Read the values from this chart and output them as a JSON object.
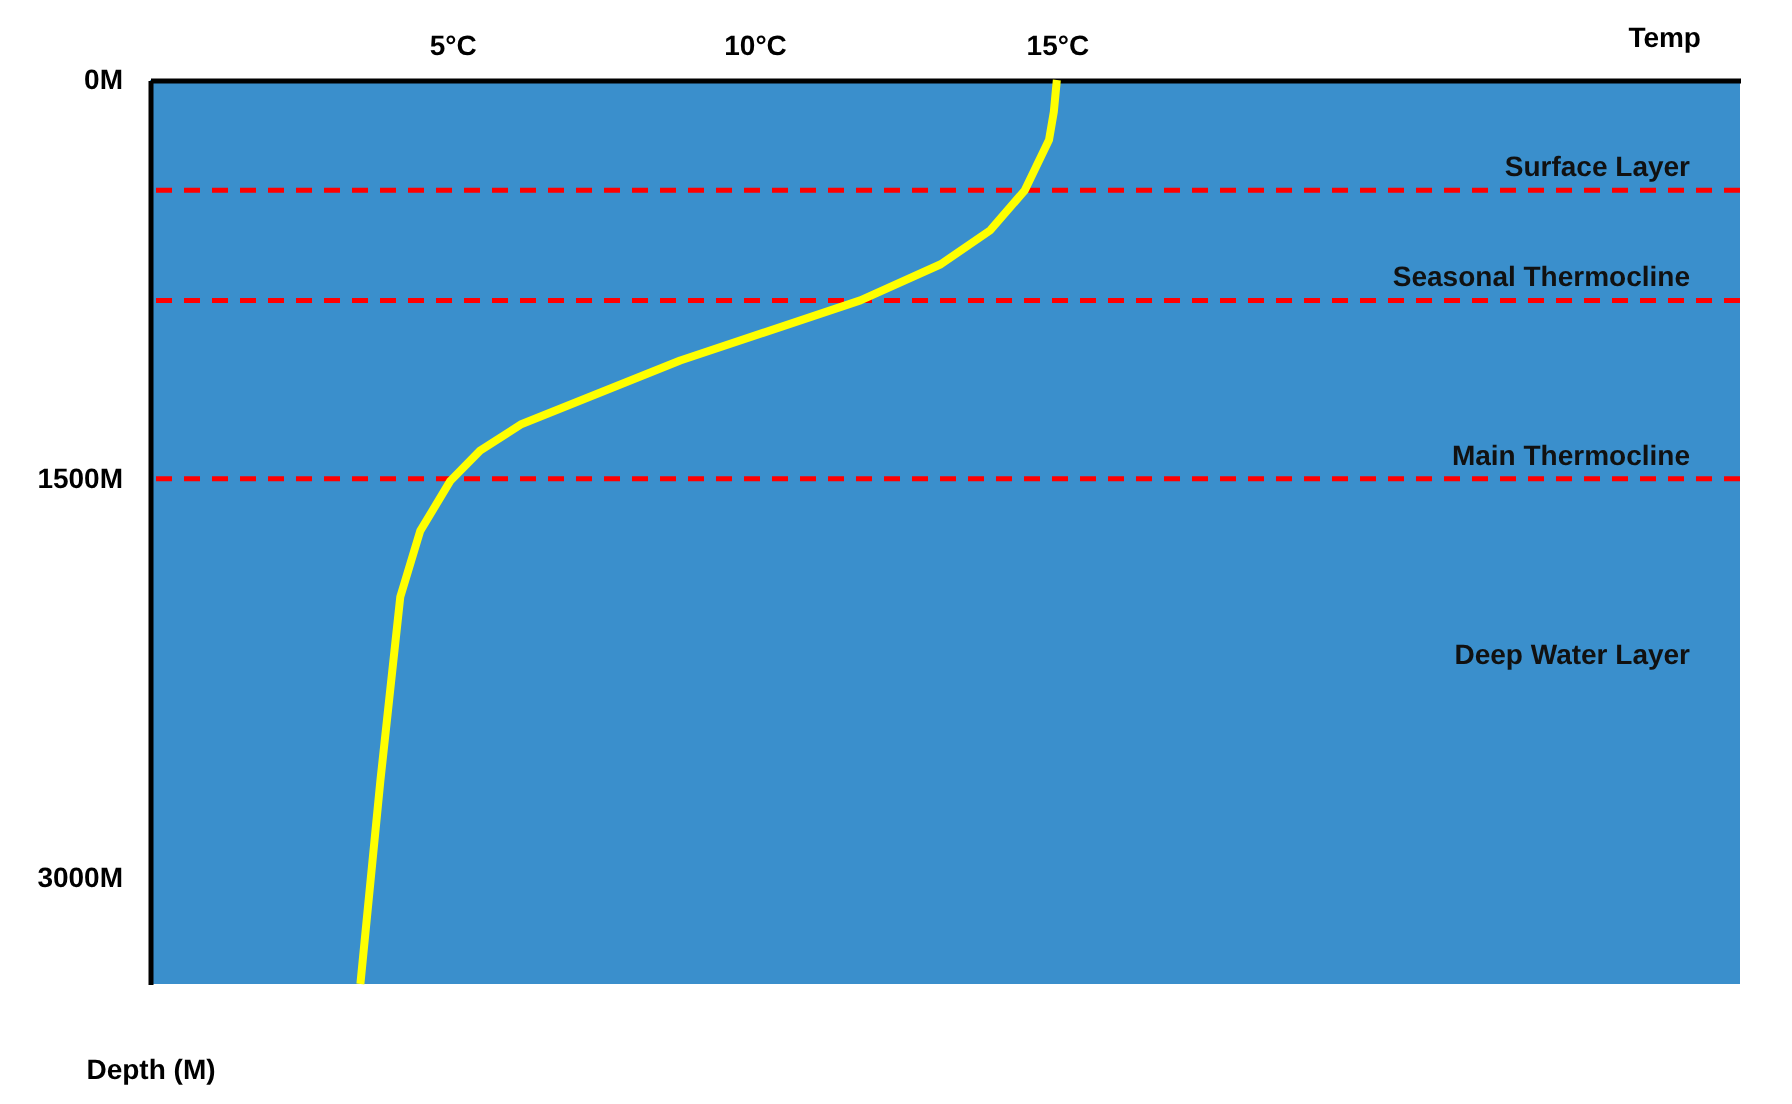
{
  "chart_data": {
    "type": "line",
    "xlabel": "Temp",
    "ylabel": "Depth (M)",
    "x": [
      15.0,
      14.95,
      14.87,
      14.47,
      13.9,
      13.08,
      11.75,
      8.77,
      6.13,
      5.46,
      4.97,
      4.47,
      4.14,
      3.81,
      3.48
    ],
    "series": [
      {
        "color": "#ffff00",
        "values": [
          0,
          120,
          226,
          415,
          565,
          693,
          829,
          1055,
          1296,
          1394,
          1507,
          1696,
          1944,
          2637,
          3400
        ]
      }
    ],
    "xlim": [
      0,
      26.3
    ],
    "ylim": [
      3400,
      0
    ],
    "xticks": [
      {
        "value": 5,
        "label": "5°C"
      },
      {
        "value": 10,
        "label": "10°C"
      },
      {
        "value": 15,
        "label": "15°C"
      }
    ],
    "yticks": [
      {
        "value": 0,
        "label": "0M"
      },
      {
        "value": 1500,
        "label": "1500M"
      },
      {
        "value": 3000,
        "label": "3000M"
      }
    ],
    "ref_lines": [
      {
        "axis": "y",
        "value": 415,
        "label": "Surface Layer",
        "color": "#ff0000",
        "line_style": "dashed"
      },
      {
        "axis": "y",
        "value": 829,
        "label": "Seasonal Thermocline",
        "color": "#ff0000",
        "line_style": "dashed"
      },
      {
        "axis": "y",
        "value": 1500,
        "label": "Main Thermocline",
        "color": "#ff0000",
        "line_style": "dashed"
      }
    ],
    "annotations": [
      "Deep Water Layer"
    ],
    "grid": false,
    "marker": "none",
    "line_style": "solid"
  }
}
